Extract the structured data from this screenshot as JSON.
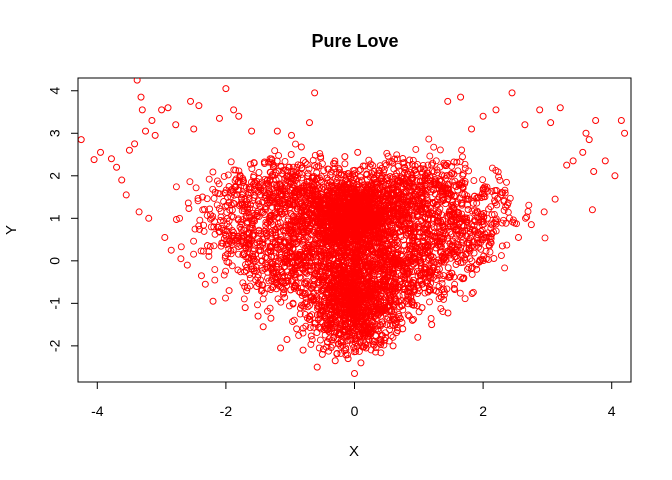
{
  "chart_data": {
    "type": "scatter",
    "title": "Pure Love",
    "xlabel": "X",
    "ylabel": "Y",
    "xlim": [
      -4.3,
      4.3
    ],
    "ylim": [
      -2.85,
      4.3
    ],
    "xticks": [
      -4,
      -2,
      0,
      2,
      4
    ],
    "yticks": [
      -2,
      -1,
      0,
      1,
      2,
      3,
      4
    ],
    "point_color": "#ff0000",
    "marker": "open-circle",
    "grid": false,
    "series": [
      {
        "points": [
          [
            -4.25,
            2.85
          ],
          [
            -4.05,
            2.38
          ],
          [
            -3.95,
            2.55
          ],
          [
            -3.78,
            2.4
          ],
          [
            -3.7,
            2.2
          ],
          [
            -3.62,
            1.9
          ],
          [
            -3.55,
            1.55
          ],
          [
            -3.5,
            2.6
          ],
          [
            -3.42,
            2.75
          ],
          [
            -3.38,
            4.25
          ],
          [
            -3.35,
            1.15
          ],
          [
            -3.32,
            3.85
          ],
          [
            -3.3,
            3.55
          ],
          [
            -3.25,
            3.05
          ],
          [
            -3.2,
            1.0
          ],
          [
            -3.15,
            3.3
          ],
          [
            -3.1,
            2.95
          ],
          [
            -3.0,
            3.55
          ],
          [
            -2.95,
            0.55
          ],
          [
            -2.9,
            3.6
          ],
          [
            -2.85,
            0.25
          ],
          [
            -2.78,
            3.2
          ],
          [
            -2.7,
            0.05
          ],
          [
            -2.6,
            -0.1
          ],
          [
            -2.55,
            3.75
          ],
          [
            -2.5,
            3.1
          ],
          [
            -2.42,
            3.65
          ],
          [
            -2.38,
            -0.35
          ],
          [
            -2.32,
            -0.55
          ],
          [
            -2.2,
            -0.95
          ],
          [
            -2.1,
            3.35
          ],
          [
            -2.0,
            4.05
          ],
          [
            -1.95,
            -0.7
          ],
          [
            -1.88,
            3.55
          ],
          [
            -1.8,
            3.4
          ],
          [
            -1.7,
            -1.1
          ],
          [
            -1.6,
            3.05
          ],
          [
            -1.5,
            -1.3
          ],
          [
            -1.42,
            -1.55
          ],
          [
            -1.3,
            -1.35
          ],
          [
            -1.2,
            3.05
          ],
          [
            -1.15,
            -2.05
          ],
          [
            -1.05,
            -1.85
          ],
          [
            -0.98,
            2.95
          ],
          [
            -0.9,
            -1.6
          ],
          [
            -0.8,
            -2.1
          ],
          [
            -0.7,
            3.25
          ],
          [
            -0.62,
            3.95
          ],
          [
            -0.58,
            -2.5
          ],
          [
            -0.5,
            -2.2
          ],
          [
            -0.42,
            -1.9
          ],
          [
            -0.3,
            -2.35
          ],
          [
            -0.25,
            -1.95
          ],
          [
            -0.15,
            2.45
          ],
          [
            -0.1,
            -2.3
          ],
          [
            0.0,
            -2.65
          ],
          [
            0.05,
            2.55
          ],
          [
            0.1,
            -2.4
          ],
          [
            0.18,
            -2.05
          ],
          [
            0.3,
            -1.9
          ],
          [
            0.42,
            -1.75
          ],
          [
            0.6,
            -2.0
          ],
          [
            0.75,
            -1.6
          ],
          [
            0.9,
            -1.4
          ],
          [
            1.05,
            -1.1
          ],
          [
            1.2,
            -1.5
          ],
          [
            1.35,
            -0.85
          ],
          [
            1.45,
            3.75
          ],
          [
            1.55,
            -0.65
          ],
          [
            1.65,
            3.85
          ],
          [
            1.7,
            -0.4
          ],
          [
            1.82,
            3.1
          ],
          [
            1.9,
            -0.2
          ],
          [
            2.0,
            3.4
          ],
          [
            2.05,
            0.05
          ],
          [
            2.2,
            3.55
          ],
          [
            2.3,
            0.35
          ],
          [
            2.45,
            3.95
          ],
          [
            2.55,
            0.55
          ],
          [
            2.65,
            3.2
          ],
          [
            2.75,
            0.85
          ],
          [
            2.88,
            3.55
          ],
          [
            2.95,
            1.15
          ],
          [
            3.05,
            3.25
          ],
          [
            3.12,
            1.45
          ],
          [
            3.2,
            3.6
          ],
          [
            3.3,
            2.25
          ],
          [
            3.4,
            2.35
          ],
          [
            3.55,
            2.55
          ],
          [
            3.6,
            3.0
          ],
          [
            3.65,
            2.85
          ],
          [
            3.7,
            1.2
          ],
          [
            3.72,
            2.1
          ],
          [
            3.75,
            3.3
          ],
          [
            3.9,
            2.35
          ],
          [
            4.05,
            2.0
          ],
          [
            4.15,
            3.3
          ],
          [
            4.2,
            3.0
          ]
        ]
      }
    ]
  }
}
